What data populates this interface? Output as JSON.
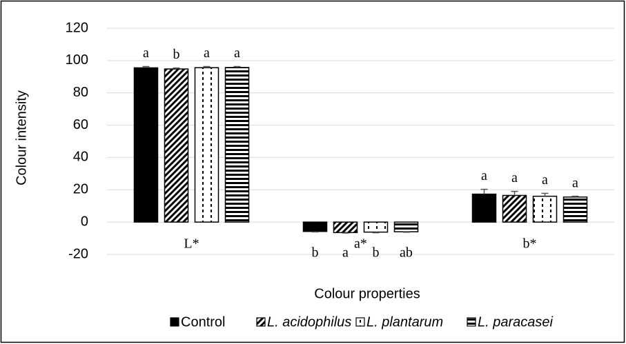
{
  "chart_data": {
    "type": "bar",
    "ylabel": "Colour intensity",
    "xlabel": "Colour properties",
    "categories": [
      "L*",
      "a*",
      "b*"
    ],
    "ylim": [
      -20,
      120
    ],
    "yticks": [
      -20,
      0,
      20,
      40,
      60,
      80,
      100,
      120
    ],
    "grid": true,
    "legend": "bottom",
    "series": [
      {
        "name": "Control",
        "color": "#000000",
        "pattern": "solid",
        "values": [
          95.5,
          -5.8,
          17.3
        ],
        "errors": [
          0.8,
          0.3,
          3.0
        ],
        "letters": [
          "a",
          "b",
          "a"
        ]
      },
      {
        "name": "L. acidophilus",
        "color": "#000000",
        "pattern": "diagonal",
        "values": [
          94.8,
          -6.5,
          16.5
        ],
        "errors": [
          0.6,
          0.3,
          2.5
        ],
        "letters": [
          "b",
          "a",
          "a"
        ]
      },
      {
        "name": "L. plantarum",
        "color": "#000000",
        "pattern": "dotted-vertical",
        "values": [
          95.6,
          -6.2,
          16.0
        ],
        "errors": [
          0.7,
          0.4,
          1.8
        ],
        "letters": [
          "a",
          "b",
          "a"
        ]
      },
      {
        "name": "L. paracasei",
        "color": "#000000",
        "pattern": "horizontal",
        "values": [
          95.7,
          -6.0,
          15.5
        ],
        "errors": [
          0.6,
          0.3,
          0.5
        ],
        "letters": [
          "a",
          "ab",
          "a"
        ]
      }
    ]
  }
}
